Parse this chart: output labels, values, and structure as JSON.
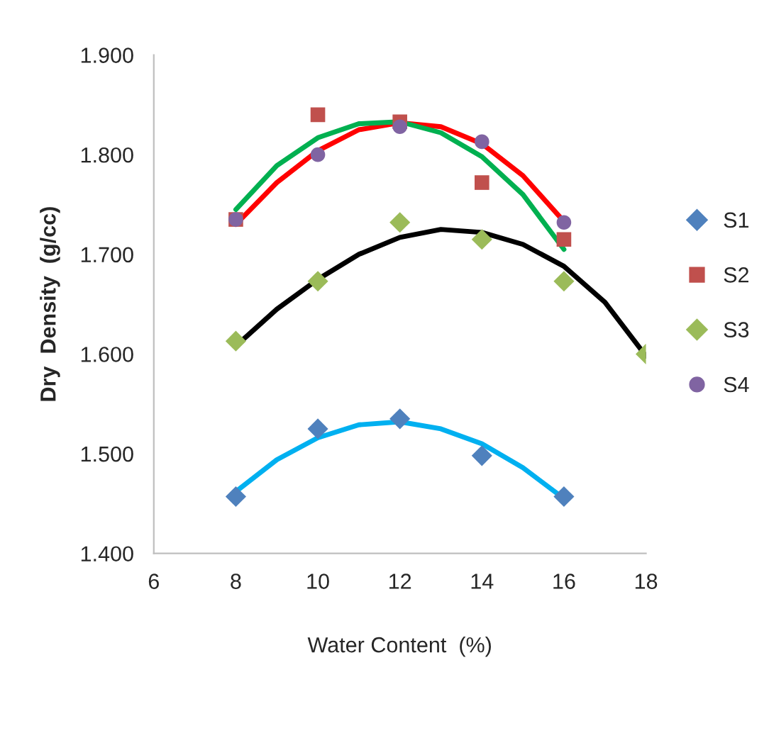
{
  "chart_data": {
    "type": "scatter",
    "xlabel": "Water Content  (%)",
    "ylabel": "Dry  Density  (g/cc)",
    "xlim": [
      6,
      18
    ],
    "xticks": [
      6,
      8,
      10,
      12,
      14,
      16,
      18
    ],
    "ylim": [
      1.4,
      1.9
    ],
    "yticks": [
      {
        "value": 1.4,
        "label": "1.400"
      },
      {
        "value": 1.5,
        "label": "1.500"
      },
      {
        "value": 1.6,
        "label": "1.600"
      },
      {
        "value": 1.7,
        "label": "1.700"
      },
      {
        "value": 1.8,
        "label": "1.800"
      },
      {
        "value": 1.9,
        "label": "1.900"
      }
    ],
    "grid": false,
    "legend": "right",
    "series": [
      {
        "name": "S1",
        "marker": "diamond",
        "color": "#4f81bd",
        "x": [
          8,
          10,
          12,
          14,
          16
        ],
        "values": [
          1.457,
          1.525,
          1.535,
          1.498,
          1.457
        ]
      },
      {
        "name": "S2",
        "marker": "square",
        "color": "#c0504d",
        "x": [
          8,
          10,
          12,
          14,
          16
        ],
        "values": [
          1.735,
          1.84,
          1.833,
          1.772,
          1.715
        ]
      },
      {
        "name": "S3",
        "marker": "diamond",
        "color": "#9bbb59",
        "x": [
          8,
          10,
          12,
          14,
          16,
          18
        ],
        "values": [
          1.613,
          1.673,
          1.732,
          1.715,
          1.673,
          1.6
        ]
      },
      {
        "name": "S4",
        "marker": "circle",
        "color": "#8064a2",
        "x": [
          8,
          10,
          12,
          14,
          16
        ],
        "values": [
          1.735,
          1.8,
          1.828,
          1.813,
          1.732
        ]
      },
      {
        "type": "line",
        "marker": "none",
        "color": "#00b0f0",
        "x": [
          8,
          9,
          10,
          11,
          12,
          13,
          14,
          15,
          16
        ],
        "values": [
          1.462,
          1.494,
          1.516,
          1.529,
          1.532,
          1.525,
          1.51,
          1.486,
          1.455
        ]
      },
      {
        "type": "line",
        "marker": "none",
        "color": "#ff0000",
        "x": [
          8,
          9,
          10,
          11,
          12,
          13,
          14,
          15,
          16
        ],
        "values": [
          1.73,
          1.772,
          1.804,
          1.825,
          1.832,
          1.828,
          1.811,
          1.779,
          1.733
        ]
      },
      {
        "type": "line",
        "marker": "none",
        "color": "#00b050",
        "x": [
          8,
          9,
          10,
          11,
          12,
          13,
          14,
          15,
          16
        ],
        "values": [
          1.745,
          1.789,
          1.817,
          1.831,
          1.833,
          1.822,
          1.798,
          1.76,
          1.705
        ]
      },
      {
        "type": "line",
        "marker": "none",
        "color": "#000000",
        "x": [
          8,
          9,
          10,
          11,
          12,
          13,
          14,
          15,
          16,
          17,
          18
        ],
        "values": [
          1.608,
          1.645,
          1.675,
          1.7,
          1.717,
          1.725,
          1.722,
          1.71,
          1.688,
          1.652,
          1.598
        ]
      }
    ]
  }
}
